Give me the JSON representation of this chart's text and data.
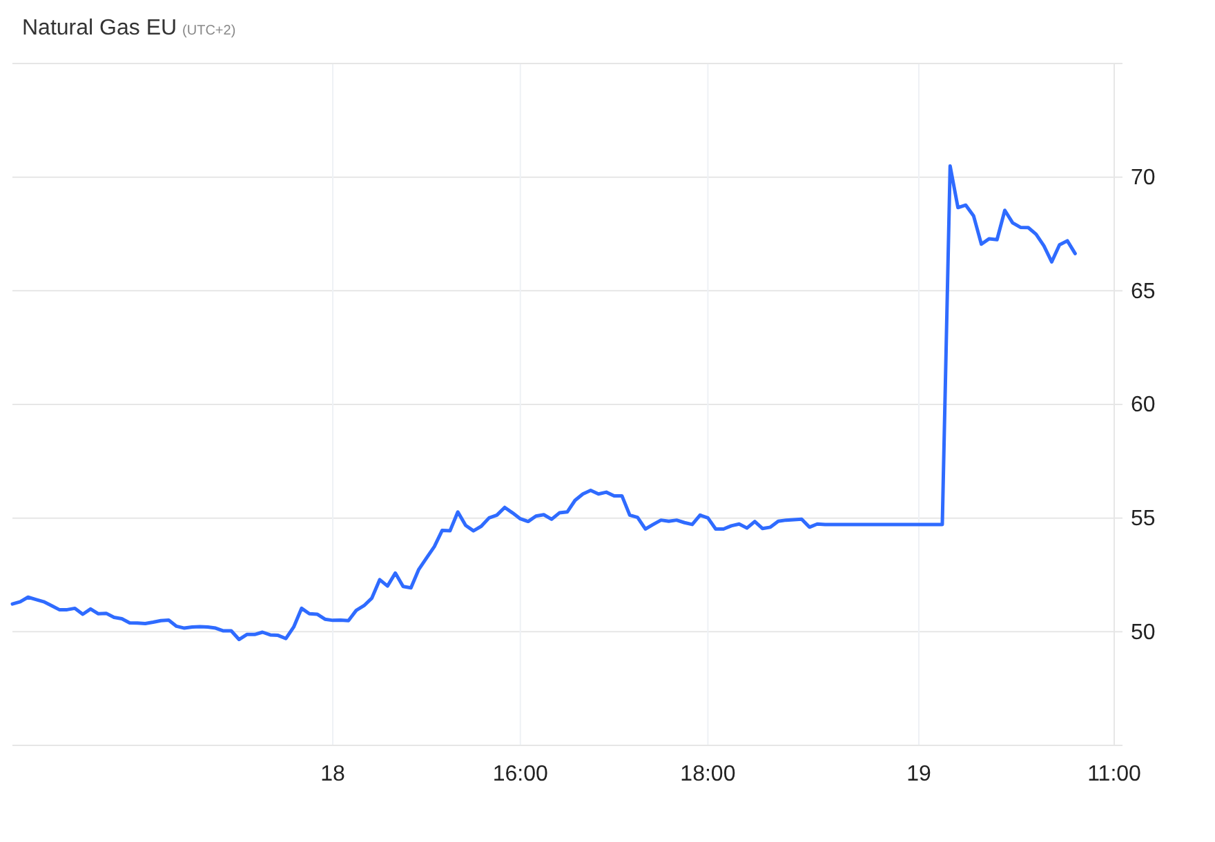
{
  "chart_data": {
    "type": "line",
    "title": "Natural Gas EU",
    "subtitle": "(UTC+2)",
    "categories": [
      null,
      null,
      null,
      null,
      null,
      null,
      null,
      null,
      null,
      null,
      null,
      null,
      null,
      null,
      null,
      null,
      null,
      null,
      null,
      null,
      null,
      null,
      null,
      null,
      null,
      null,
      null,
      null,
      null,
      null,
      null,
      null,
      null,
      null,
      null,
      null,
      null,
      null,
      null,
      null,
      null,
      "18",
      null,
      null,
      null,
      null,
      null,
      null,
      null,
      null,
      null,
      null,
      null,
      null,
      null,
      null,
      null,
      null,
      null,
      null,
      null,
      null,
      null,
      null,
      null,
      "16:00",
      null,
      null,
      null,
      null,
      null,
      null,
      null,
      null,
      null,
      null,
      null,
      null,
      null,
      null,
      null,
      null,
      null,
      null,
      null,
      null,
      null,
      null,
      null,
      "18:00",
      null,
      null,
      null,
      null,
      null,
      null,
      null,
      null,
      null,
      null,
      null,
      null,
      null,
      null,
      null,
      null,
      null,
      null,
      null,
      null,
      null,
      null,
      null,
      null,
      null,
      null,
      "19",
      null,
      null,
      null,
      null,
      null,
      null,
      null,
      null,
      null,
      null,
      null,
      null,
      null,
      null,
      null,
      null,
      null,
      null,
      null,
      null,
      null,
      null,
      null,
      null,
      "11:00"
    ],
    "ylim": [
      45,
      75
    ],
    "yticks": [
      50,
      55,
      60,
      65,
      70
    ],
    "grid": true,
    "series": [
      {
        "color": "#2f6bff",
        "values": [
          51.22,
          51.32,
          51.52,
          51.42,
          51.32,
          51.15,
          50.97,
          50.97,
          51.03,
          50.77,
          51.0,
          50.79,
          50.81,
          50.63,
          50.57,
          50.39,
          50.38,
          50.36,
          50.42,
          50.49,
          50.51,
          50.24,
          50.16,
          50.21,
          50.22,
          50.21,
          50.16,
          50.04,
          50.04,
          49.66,
          49.88,
          49.88,
          49.98,
          49.86,
          49.84,
          49.7,
          50.21,
          51.03,
          50.79,
          50.77,
          50.55,
          50.5,
          50.51,
          50.49,
          50.94,
          51.15,
          51.48,
          52.29,
          52.01,
          52.58,
          51.99,
          51.93,
          52.74,
          53.25,
          53.75,
          54.46,
          54.44,
          55.27,
          54.68,
          54.44,
          54.64,
          55.01,
          55.13,
          55.47,
          55.23,
          54.97,
          54.85,
          55.09,
          55.15,
          54.95,
          55.23,
          55.27,
          55.78,
          56.06,
          56.22,
          56.06,
          56.14,
          55.98,
          55.98,
          55.13,
          55.03,
          54.52,
          54.72,
          54.91,
          54.86,
          54.91,
          54.8,
          54.72,
          55.13,
          55.01,
          54.52,
          54.52,
          54.66,
          54.74,
          54.56,
          54.85,
          54.54,
          54.6,
          54.86,
          54.91,
          54.93,
          54.95,
          54.6,
          54.74,
          54.72,
          54.72,
          54.72,
          54.72,
          54.72,
          54.72,
          54.72,
          54.72,
          54.72,
          54.72,
          54.72,
          54.72,
          54.72,
          54.72,
          54.72,
          54.72,
          70.49,
          68.66,
          68.77,
          68.3,
          67.05,
          67.29,
          67.25,
          68.54,
          67.99,
          67.79,
          67.78,
          67.49,
          66.98,
          66.27,
          67.02,
          67.2,
          66.64,
          null,
          null,
          null,
          null,
          null
        ]
      }
    ]
  }
}
